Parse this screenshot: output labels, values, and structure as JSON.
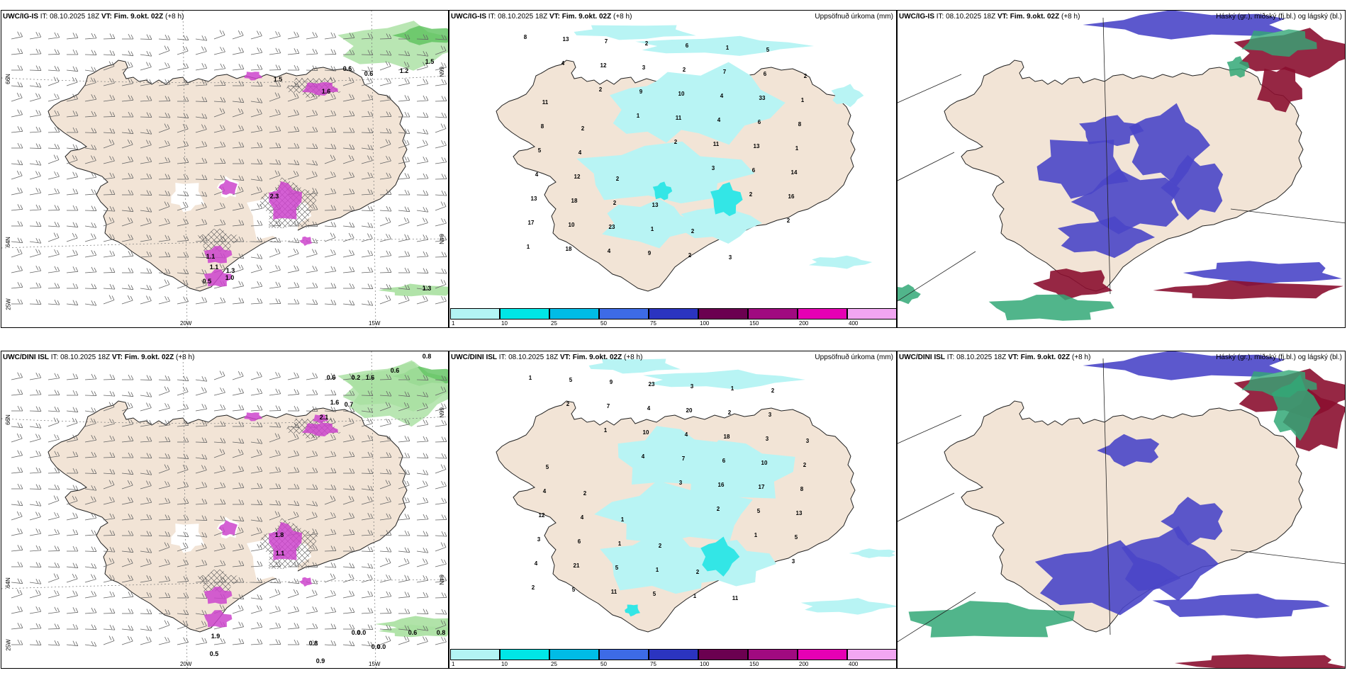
{
  "panels": [
    {
      "id": "p1",
      "source": "UWC/IG-IS",
      "it_label": "IT:",
      "it": "08.10.2025 18Z",
      "vt_label": "VT:",
      "vt": "Fim. 9.okt. 02Z",
      "lead": "(+8 h)",
      "legend": "",
      "kind": "wind"
    },
    {
      "id": "p2",
      "source": "UWC/IG-IS",
      "it_label": "IT:",
      "it": "08.10.2025 18Z",
      "vt_label": "VT:",
      "vt": "Fim. 9.okt. 02Z",
      "lead": "(+8 h)",
      "legend": "Uppsöfnuð úrkoma (mm)",
      "kind": "precip"
    },
    {
      "id": "p3",
      "source": "UWC/IG-IS",
      "it_label": "IT:",
      "it": "08.10.2025 18Z",
      "vt_label": "VT:",
      "vt": "Fim. 9.okt. 02Z",
      "lead": "(+8 h)",
      "legend": "Háský (gr.), miðský (fj.bl.) og lágský (bl.)",
      "kind": "cloud"
    },
    {
      "id": "p4",
      "source": "UWC/DINI ISL",
      "it_label": "IT:",
      "it": "08.10.2025 18Z",
      "vt_label": "VT:",
      "vt": "Fim. 9.okt. 02Z",
      "lead": "(+8 h)",
      "legend": "",
      "kind": "wind"
    },
    {
      "id": "p5",
      "source": "UWC/DINI ISL",
      "it_label": "IT:",
      "it": "08.10.2025 18Z",
      "vt_label": "VT:",
      "vt": "Fim. 9.okt. 02Z",
      "lead": "(+8 h)",
      "legend": "Uppsöfnuð úrkoma (mm)",
      "kind": "precip"
    },
    {
      "id": "p6",
      "source": "UWC/DINI ISL",
      "it_label": "IT:",
      "it": "08.10.2025 18Z",
      "vt_label": "VT:",
      "vt": "Fim. 9.okt. 02Z",
      "lead": "(+8 h)",
      "legend": "Háský (gr.), miðský (fj.bl.) og lágský (bl.)",
      "kind": "cloud"
    }
  ],
  "axes": {
    "lat_66": "66N",
    "lat_64": "64N",
    "lon_20": "20W",
    "lon_15": "15W",
    "lon_25": "25W"
  },
  "colorbar": {
    "ticks": [
      "1",
      "10",
      "25",
      "50",
      "75",
      "100",
      "150",
      "200",
      "400"
    ],
    "colors": [
      "#b3f4f4",
      "#00e6e6",
      "#00bce6",
      "#3d6be6",
      "#2b34c0",
      "#6b0050",
      "#a00a80",
      "#e600b4",
      "#f2a6f2"
    ]
  },
  "colors": {
    "land": "#f2e4d6",
    "precip_light": "#b8f4f4",
    "precip_mid": "#33e6e6",
    "wind_shade": "#a8e0a0",
    "convective": "#cc44cc",
    "high_cloud": "#33a877",
    "mid_cloud": "#4a46c8",
    "low_cloud": "#8b1030"
  },
  "p1_labels": [
    "0.6",
    "0.6",
    "1.2",
    "1.5",
    "1.3",
    "1.5",
    "1.6",
    "2.3",
    "1.1",
    "1.1",
    "0.5",
    "1.0",
    "1.3"
  ],
  "p4_labels": [
    "0.6",
    "0.2",
    "0.6",
    "0.8",
    "1.6",
    "0.7",
    "2.1",
    "1.8",
    "1.1",
    "0.9",
    "0.8",
    "1.9",
    "0.5",
    "1.6",
    "0.0",
    "0.0",
    "0.0",
    "0.0",
    "0.6",
    "0.8"
  ],
  "p2_labels": [
    "8",
    "4",
    "2",
    "1",
    "2",
    "3",
    "2",
    "2",
    "1",
    "13",
    "12",
    "9",
    "11",
    "11",
    "6",
    "16",
    "17",
    "18",
    "7",
    "3",
    "10",
    "4",
    "13",
    "14",
    "13",
    "10",
    "4",
    "2",
    "2",
    "4",
    "6",
    "1",
    "4",
    "18",
    "23",
    "9",
    "6",
    "7",
    "33",
    "8",
    "5",
    "12",
    "2",
    "1",
    "2",
    "1",
    "6",
    "1",
    "8",
    "4",
    "2",
    "13",
    "2",
    "3",
    "5",
    "2",
    "11",
    "2"
  ],
  "p5_labels": [
    "1",
    "2",
    "1",
    "4",
    "3",
    "2",
    "1",
    "3",
    "2",
    "5",
    "7",
    "10",
    "7",
    "16",
    "5",
    "5",
    "4",
    "5",
    "9",
    "4",
    "4",
    "6",
    "17",
    "13",
    "3",
    "21",
    "11",
    "23",
    "20",
    "18",
    "10",
    "8",
    "12",
    "6",
    "5",
    "5",
    "3",
    "2",
    "3",
    "2",
    "4",
    "4",
    "1",
    "1",
    "1",
    "1",
    "3",
    "3",
    "5",
    "2",
    "1",
    "2",
    "2",
    "11",
    "2"
  ]
}
